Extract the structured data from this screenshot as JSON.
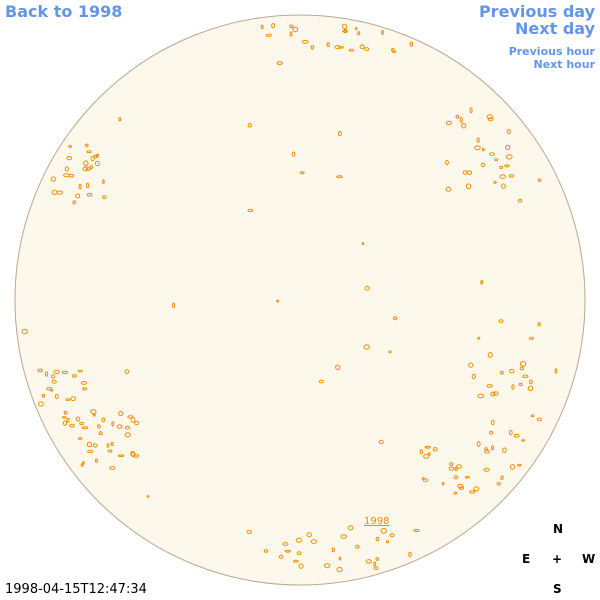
{
  "nav": {
    "back": "Back to 1998",
    "previous_day": "Previous day",
    "next_day": "Next day",
    "previous_hour": "Previous hour",
    "next_hour": "Next hour"
  },
  "timestamp": "1998-04-15T12:47:34",
  "disk_label": "1998",
  "compass": {
    "north": "N",
    "east": "E",
    "center": "+",
    "west": "W",
    "south": "S"
  }
}
